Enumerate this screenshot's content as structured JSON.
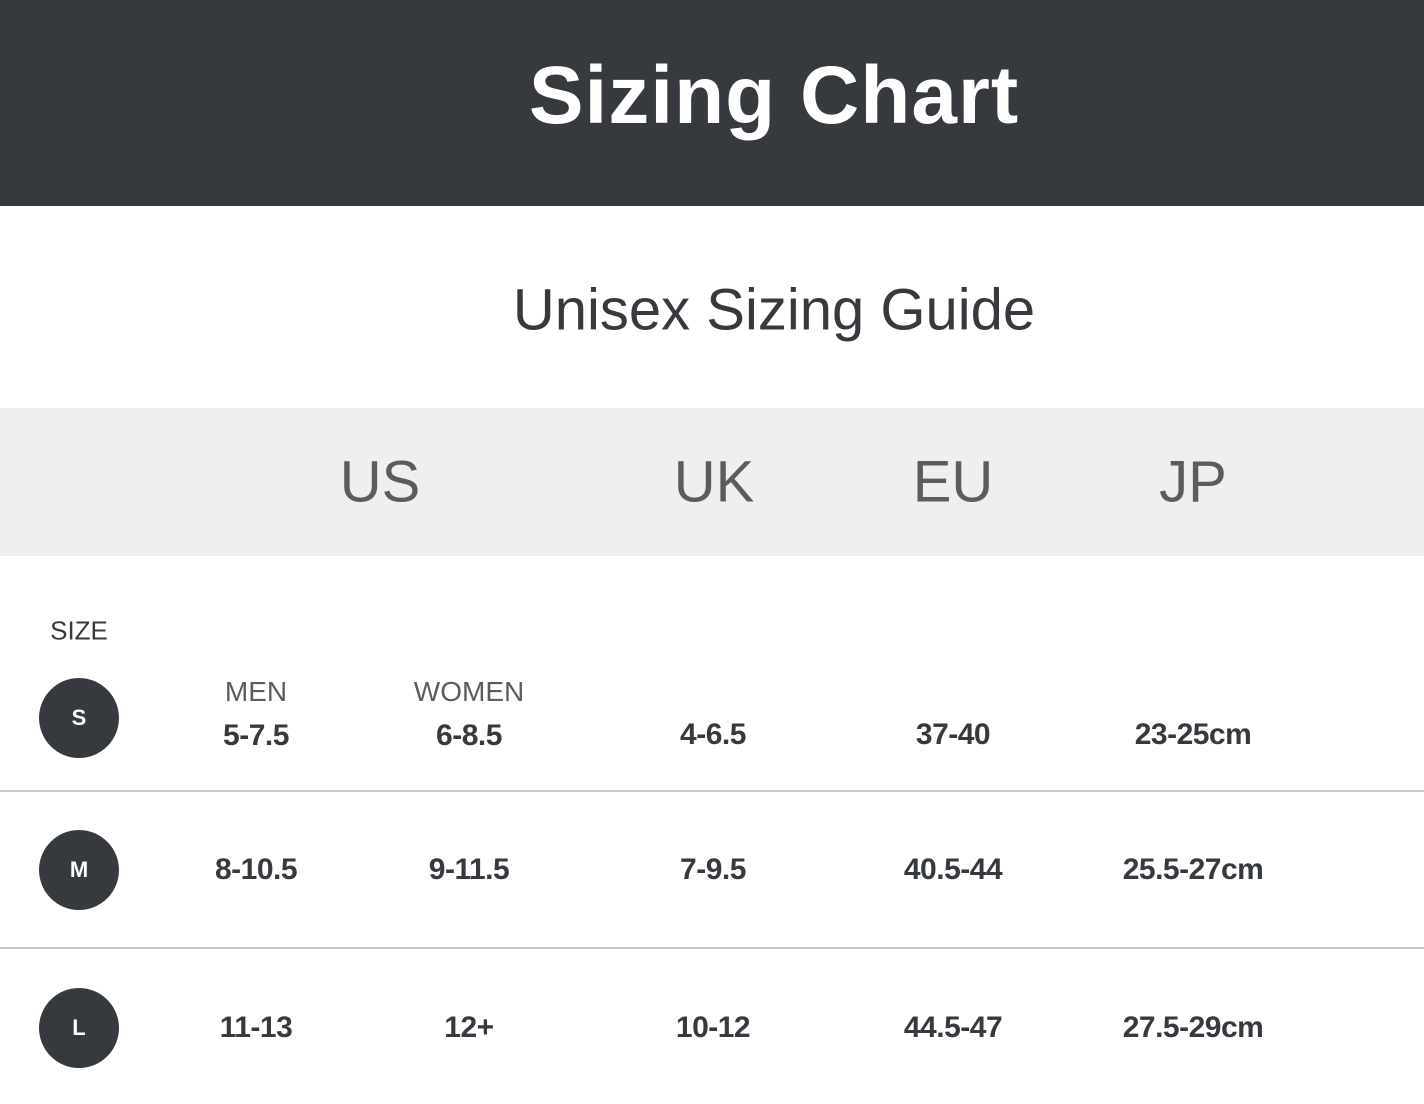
{
  "header": {
    "title": "Sizing Chart"
  },
  "subtitle": "Unisex Sizing Guide",
  "columns": [
    "US",
    "UK",
    "EU",
    "JP"
  ],
  "size_label": "SIZE",
  "us_subheaders": {
    "men": "MEN",
    "women": "WOMEN"
  },
  "rows": [
    {
      "size": "S",
      "us_men": "5-7.5",
      "us_women": "6-8.5",
      "uk": "4-6.5",
      "eu": "37-40",
      "jp": "23-25cm"
    },
    {
      "size": "M",
      "us_men": "8-10.5",
      "us_women": "9-11.5",
      "uk": "7-9.5",
      "eu": "40.5-44",
      "jp": "25.5-27cm"
    },
    {
      "size": "L",
      "us_men": "11-13",
      "us_women": "12+",
      "uk": "10-12",
      "eu": "44.5-47",
      "jp": "27.5-29cm"
    }
  ],
  "colors": {
    "dark": "#363a3e",
    "band": "#efefef",
    "divider": "#c8c8c8"
  }
}
